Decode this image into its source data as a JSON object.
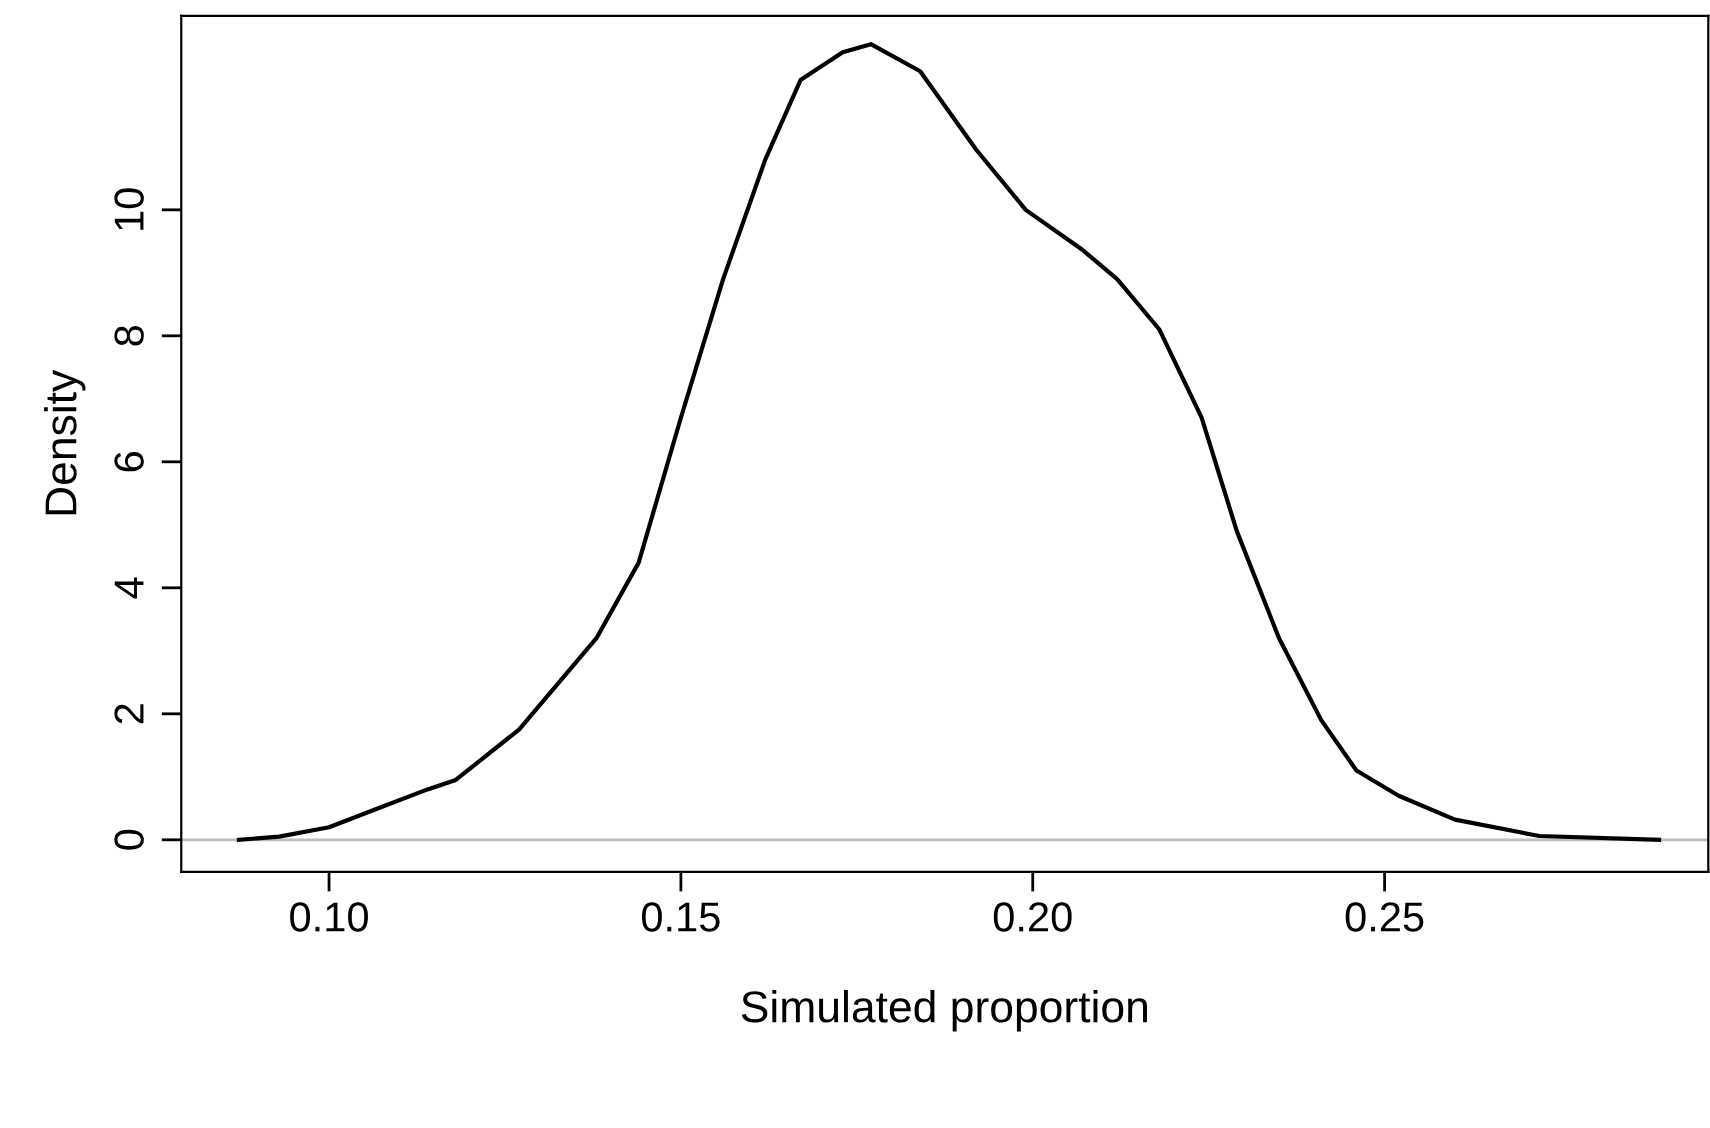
{
  "chart_data": {
    "type": "line",
    "xlabel": "Simulated proportion",
    "ylabel": "Density",
    "xlim": [
      0.079,
      0.296
    ],
    "ylim": [
      -0.51,
      13.08
    ],
    "xticks": [
      {
        "value": 0.1,
        "label": "0.10"
      },
      {
        "value": 0.15,
        "label": "0.15"
      },
      {
        "value": 0.2,
        "label": "0.20"
      },
      {
        "value": 0.25,
        "label": "0.25"
      }
    ],
    "yticks": [
      0,
      2,
      4,
      6,
      8,
      10
    ],
    "grid": false,
    "legend": false,
    "marker": "none",
    "line_style": "solid",
    "ref_lines": [
      {
        "axis": "y",
        "value": 0,
        "color": "#bebebe"
      }
    ],
    "series": [
      {
        "color": "#000000",
        "x": [
          0.0872,
          0.0929,
          0.1,
          0.107,
          0.114,
          0.118,
          0.127,
          0.138,
          0.144,
          0.15,
          0.156,
          0.162,
          0.167,
          0.173,
          0.177,
          0.184,
          0.192,
          0.199,
          0.207,
          0.212,
          0.218,
          0.224,
          0.229,
          0.235,
          0.241,
          0.246,
          0.252,
          0.26,
          0.272,
          0.289
        ],
        "values": [
          0,
          0.05,
          0.2,
          0.5,
          0.8,
          0.95,
          1.75,
          3.2,
          4.4,
          6.7,
          8.9,
          10.8,
          12.06,
          12.5,
          12.63,
          12.2,
          10.95,
          10.0,
          9.37,
          8.9,
          8.1,
          6.7,
          4.9,
          3.2,
          1.9,
          1.1,
          0.7,
          0.32,
          0.06,
          0
        ]
      }
    ]
  }
}
